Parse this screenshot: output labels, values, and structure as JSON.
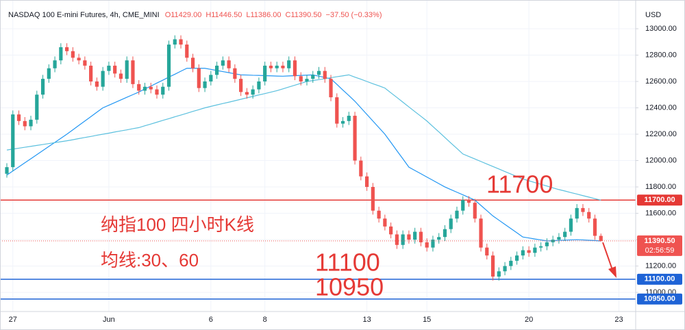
{
  "chart_data": {
    "type": "candlestick",
    "title": "NASDAQ 100 E-mini Futures, 4h, CME_MINI",
    "ohlc_text": [
      "O11429.00",
      "H11446.50",
      "L11386.00",
      "C11390.50",
      "−37.50 (−0.33%)"
    ],
    "y_unit": "USD",
    "ylim": [
      10855,
      13218
    ],
    "yticks": [
      {
        "value": 11000,
        "label": "11000.00"
      },
      {
        "value": 11200,
        "label": "11200.00"
      },
      {
        "value": 11400,
        "label": "11400.00"
      },
      {
        "value": 11600,
        "label": "11600.00"
      },
      {
        "value": 11800,
        "label": "11800.00"
      },
      {
        "value": 12000,
        "label": "12000.00"
      },
      {
        "value": 12200,
        "label": "12200.00"
      },
      {
        "value": 12400,
        "label": "12400.00"
      },
      {
        "value": 12600,
        "label": "12600.00"
      },
      {
        "value": 12800,
        "label": "12800.00"
      },
      {
        "value": 13000,
        "label": "13000.00"
      }
    ],
    "grid": true,
    "up_color": "#26a69a",
    "down_color": "#ef5350",
    "categories": [
      null,
      "27",
      null,
      null,
      null,
      null,
      null,
      null,
      null,
      null,
      null,
      null,
      null,
      null,
      null,
      null,
      null,
      "Jun",
      null,
      null,
      null,
      null,
      null,
      null,
      null,
      null,
      null,
      null,
      null,
      null,
      null,
      null,
      null,
      null,
      "6",
      null,
      null,
      null,
      null,
      null,
      null,
      null,
      null,
      "8",
      null,
      null,
      null,
      null,
      null,
      null,
      null,
      null,
      null,
      null,
      null,
      null,
      null,
      null,
      null,
      null,
      "13",
      null,
      null,
      null,
      null,
      null,
      null,
      null,
      null,
      null,
      "15",
      null,
      null,
      null,
      null,
      null,
      null,
      null,
      null,
      null,
      null,
      null,
      null,
      null,
      null,
      null,
      null,
      "20",
      null,
      null,
      null,
      null,
      null,
      null,
      null,
      null,
      null,
      null,
      null,
      null,
      null,
      null,
      "23",
      null
    ],
    "open": [
      11900,
      11950,
      12350,
      12300,
      12260,
      12310,
      12500,
      12620,
      12700,
      12760,
      12860,
      12830,
      12780,
      12760,
      12720,
      12600,
      12560,
      12680,
      12720,
      12660,
      12620,
      12760,
      12580,
      12530,
      12560,
      12540,
      12500,
      12560,
      12880,
      12920,
      12880,
      12780,
      12700,
      12550,
      12600,
      12650,
      12720,
      12760,
      12700,
      12620,
      12520,
      12500,
      12540,
      12600,
      12720,
      12700,
      12720,
      12700,
      12760,
      12640,
      12600,
      12620,
      12650,
      12680,
      12620,
      12480,
      12280,
      12300,
      12340,
      12000,
      11880,
      11800,
      11620,
      11560,
      11500,
      11440,
      11360,
      11440,
      11400,
      11460,
      11380,
      11340,
      11400,
      11420,
      11480,
      11560,
      11620,
      11700,
      11680,
      11560,
      11340,
      11280,
      11120,
      11160,
      11200,
      11240,
      11280,
      11320,
      11300,
      11340,
      11350,
      11380,
      11400,
      11420,
      11460,
      11560,
      11640,
      11610,
      11560,
      11429,
      null,
      null,
      null,
      null
    ],
    "high": [
      11980,
      12380,
      12380,
      12330,
      12340,
      12530,
      12650,
      12730,
      12790,
      12890,
      12890,
      12860,
      12810,
      12790,
      12750,
      12630,
      12710,
      12750,
      12750,
      12690,
      12790,
      12790,
      12610,
      12590,
      12590,
      12570,
      12590,
      12910,
      12950,
      12950,
      12910,
      12810,
      12730,
      12630,
      12680,
      12750,
      12790,
      12790,
      12730,
      12650,
      12550,
      12570,
      12630,
      12750,
      12750,
      12750,
      12750,
      12790,
      12790,
      12670,
      12650,
      12680,
      12710,
      12710,
      12650,
      12510,
      12330,
      12370,
      12370,
      12030,
      11910,
      11830,
      11650,
      11590,
      11530,
      11470,
      11470,
      11470,
      11490,
      11490,
      11410,
      11430,
      11450,
      11510,
      11590,
      11650,
      11730,
      11730,
      11710,
      11590,
      11370,
      11310,
      11190,
      11230,
      11270,
      11310,
      11350,
      11350,
      11370,
      11380,
      11410,
      11430,
      11450,
      11490,
      11590,
      11670,
      11670,
      11640,
      11590,
      11446.5,
      null,
      null,
      null,
      null
    ],
    "low": [
      11870,
      11920,
      12270,
      12230,
      12230,
      12280,
      12470,
      12590,
      12670,
      12730,
      12800,
      12750,
      12730,
      12690,
      12570,
      12530,
      12530,
      12650,
      12630,
      12590,
      12590,
      12550,
      12500,
      12500,
      12510,
      12470,
      12470,
      12530,
      12850,
      12850,
      12750,
      12670,
      12520,
      12520,
      12570,
      12620,
      12690,
      12670,
      12590,
      12490,
      12470,
      12470,
      12510,
      12570,
      12670,
      12670,
      12670,
      12670,
      12610,
      12570,
      12570,
      12590,
      12620,
      12590,
      12450,
      12250,
      12250,
      12270,
      11970,
      11850,
      11770,
      11590,
      11530,
      11470,
      11410,
      11330,
      11330,
      11370,
      11370,
      11350,
      11310,
      11310,
      11370,
      11390,
      11450,
      11530,
      11590,
      11650,
      11530,
      11310,
      11250,
      11090,
      11090,
      11130,
      11170,
      11210,
      11250,
      11270,
      11270,
      11310,
      11320,
      11350,
      11370,
      11390,
      11430,
      11530,
      11580,
      11530,
      11399,
      11386,
      null,
      null,
      null,
      null
    ],
    "close": [
      11950,
      12350,
      12300,
      12260,
      12310,
      12500,
      12620,
      12700,
      12760,
      12860,
      12830,
      12780,
      12760,
      12720,
      12600,
      12560,
      12680,
      12720,
      12660,
      12620,
      12760,
      12580,
      12530,
      12560,
      12540,
      12500,
      12560,
      12880,
      12920,
      12880,
      12780,
      12700,
      12550,
      12600,
      12650,
      12720,
      12760,
      12700,
      12620,
      12520,
      12500,
      12540,
      12600,
      12720,
      12700,
      12720,
      12700,
      12760,
      12640,
      12600,
      12620,
      12650,
      12680,
      12620,
      12480,
      12280,
      12300,
      12340,
      12000,
      11880,
      11800,
      11620,
      11560,
      11500,
      11440,
      11360,
      11440,
      11400,
      11460,
      11380,
      11340,
      11400,
      11420,
      11480,
      11560,
      11620,
      11700,
      11680,
      11560,
      11340,
      11280,
      11120,
      11160,
      11200,
      11240,
      11280,
      11320,
      11300,
      11340,
      11350,
      11380,
      11400,
      11420,
      11460,
      11560,
      11640,
      11610,
      11560,
      11429,
      11390.5,
      null,
      null,
      null,
      null
    ],
    "series": [
      {
        "color": "#2196f3",
        "values": [
          11890,
          11921,
          11952,
          11983,
          12014,
          12045,
          12076,
          12107,
          12138,
          12169,
          12200,
          12233,
          12267,
          12300,
          12333,
          12367,
          12400,
          12420,
          12440,
          12460,
          12480,
          12500,
          12520,
          12543,
          12565,
          12588,
          12610,
          12633,
          12655,
          12678,
          12700,
          12700,
          12700,
          12700,
          12692,
          12683,
          12675,
          12667,
          12658,
          12650,
          12649,
          12647,
          12646,
          12644,
          12643,
          12641,
          12640,
          12642,
          12644,
          12646,
          12648,
          12650,
          12640,
          12630,
          12620,
          12578,
          12535,
          12493,
          12450,
          12400,
          12350,
          12300,
          12250,
          12200,
          12138,
          12075,
          12013,
          11950,
          11925,
          11900,
          11875,
          11850,
          11825,
          11800,
          11780,
          11760,
          11740,
          11720,
          11700,
          11660,
          11620,
          11580,
          11548,
          11516,
          11484,
          11452,
          11420,
          11413,
          11405,
          11398,
          11390,
          11392,
          11394,
          11396,
          11398,
          11400,
          11398,
          11395,
          11393,
          11390,
          null,
          null,
          null,
          null
        ]
      },
      {
        "color": "#5bc0de",
        "values": [
          12080,
          12087,
          12094,
          12101,
          12108,
          12115,
          12122,
          12129,
          12136,
          12143,
          12150,
          12158,
          12167,
          12175,
          12183,
          12192,
          12200,
          12208,
          12217,
          12225,
          12233,
          12242,
          12250,
          12264,
          12277,
          12291,
          12305,
          12318,
          12332,
          12345,
          12359,
          12373,
          12386,
          12400,
          12411,
          12422,
          12433,
          12443,
          12454,
          12465,
          12476,
          12487,
          12498,
          12508,
          12519,
          12530,
          12544,
          12558,
          12572,
          12586,
          12600,
          12607,
          12614,
          12621,
          12629,
          12636,
          12643,
          12650,
          12633,
          12617,
          12600,
          12583,
          12567,
          12550,
          12514,
          12479,
          12443,
          12407,
          12371,
          12336,
          12300,
          12258,
          12217,
          12175,
          12133,
          12092,
          12050,
          12031,
          12012,
          11993,
          11974,
          11955,
          11936,
          11917,
          11898,
          11879,
          11860,
          11847,
          11833,
          11820,
          11807,
          11793,
          11780,
          11769,
          11757,
          11746,
          11734,
          11723,
          11711,
          11700,
          null,
          null,
          null,
          null
        ]
      }
    ],
    "levels": [
      {
        "value": 11700,
        "label": "11700.00",
        "color": "#e53935"
      },
      {
        "value": 11100,
        "label": "11100.00",
        "color": "#1e63d6"
      },
      {
        "value": 10950,
        "label": "10950.00",
        "color": "#1e63d6"
      }
    ],
    "last_price": {
      "label": "11390.50",
      "countdown": "02:56:59",
      "color": "#ef5350"
    },
    "annotations": [
      "11700",
      "11100",
      "10950",
      "纳指100 四小时K线",
      "均线:30、60"
    ],
    "annotation_color": "#e53935"
  }
}
